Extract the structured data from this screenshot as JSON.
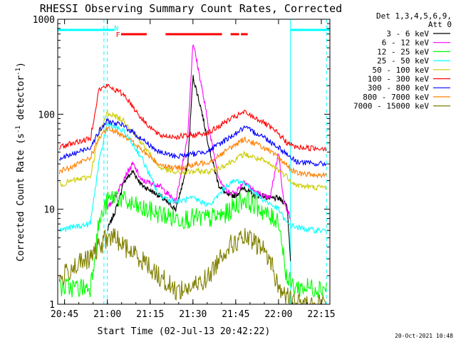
{
  "chart_data": {
    "type": "line",
    "title": "RHESSI Observing Summary Count Rates, Corrected",
    "xlabel": "Start Time (02-Jul-13 20:42:22)",
    "ylabel": "Corrected Count Rate (s⁻¹ detector⁻¹)",
    "ylabel_parts": {
      "prefix": "Corrected Count Rate (s",
      "sup1": "-1",
      "mid": " detector",
      "sup2": "-1",
      "suffix": ")"
    },
    "xlim": [
      20.71,
      22.3
    ],
    "ylim": [
      1,
      1000
    ],
    "yscale": "log",
    "x_ticks": [
      {
        "v": 20.75,
        "label": "20:45"
      },
      {
        "v": 21.0,
        "label": "21:00"
      },
      {
        "v": 21.25,
        "label": "21:15"
      },
      {
        "v": 21.5,
        "label": "21:30"
      },
      {
        "v": 21.75,
        "label": "21:45"
      },
      {
        "v": 22.0,
        "label": "22:00"
      },
      {
        "v": 22.25,
        "label": "22:15"
      }
    ],
    "y_ticks": [
      {
        "v": 1,
        "label": "1"
      },
      {
        "v": 10,
        "label": "10"
      },
      {
        "v": 100,
        "label": "100"
      },
      {
        "v": 1000,
        "label": "1000"
      }
    ],
    "legend_header": [
      "Det 1,3,4,5,6,9,",
      "Att 0"
    ],
    "legend_placement": "right",
    "annotation_N": "N",
    "annotation_F": "F",
    "night_segments": [
      [
        20.71,
        21.04
      ],
      [
        22.07,
        22.3
      ]
    ],
    "flare_segments": [
      [
        21.08,
        21.23
      ],
      [
        21.34,
        21.67
      ],
      [
        21.72,
        21.77
      ],
      [
        21.78,
        21.82
      ]
    ],
    "vlines": [
      20.98,
      21.0,
      22.07,
      22.28
    ],
    "footer_date": "20-Oct-2021 10:48",
    "series": [
      {
        "name": "3 - 6 keV",
        "color": "#000000",
        "x": [
          21.0,
          21.05,
          21.1,
          21.15,
          21.2,
          21.3,
          21.4,
          21.47,
          21.5,
          21.55,
          21.6,
          21.65,
          21.7,
          21.75,
          21.8,
          21.85,
          21.9,
          21.95,
          22.0,
          22.03,
          22.05,
          22.07
        ],
        "y": [
          6,
          10,
          20,
          25,
          18,
          14,
          10,
          30,
          250,
          110,
          40,
          18,
          14,
          14,
          17,
          14,
          14,
          13,
          13,
          12,
          11,
          3
        ]
      },
      {
        "name": "6 - 12 keV",
        "color": "#ff00ff",
        "x": [
          21.0,
          21.05,
          21.1,
          21.15,
          21.2,
          21.3,
          21.4,
          21.47,
          21.5,
          21.55,
          21.6,
          21.65,
          21.7,
          21.75,
          21.8,
          21.85,
          21.9,
          21.95,
          22.0,
          22.03,
          22.05,
          22.07
        ],
        "y": [
          10,
          14,
          22,
          30,
          20,
          18,
          12,
          60,
          580,
          200,
          60,
          22,
          15,
          15,
          20,
          16,
          14,
          13,
          40,
          12,
          10,
          8
        ]
      },
      {
        "name": "12 - 25 keV",
        "color": "#00ff00",
        "x": [
          20.72,
          20.8,
          20.9,
          20.95,
          21.0,
          21.05,
          21.1,
          21.2,
          21.3,
          21.4,
          21.5,
          21.6,
          21.7,
          21.75,
          21.8,
          21.9,
          21.95,
          22.0,
          22.05,
          22.1,
          22.2,
          22.28
        ],
        "y": [
          1.5,
          1.5,
          1.5,
          7,
          12,
          14,
          12,
          10,
          9,
          8,
          8,
          8,
          9,
          11,
          13,
          10,
          8,
          8,
          1.8,
          1.5,
          1.5,
          1.5
        ]
      },
      {
        "name": "25 - 50 keV",
        "color": "#00ffff",
        "x": [
          20.72,
          20.8,
          20.9,
          20.95,
          21.0,
          21.1,
          21.2,
          21.3,
          21.4,
          21.5,
          21.6,
          21.7,
          21.75,
          21.8,
          21.9,
          22.0,
          22.05,
          22.1,
          22.2,
          22.28
        ],
        "y": [
          6,
          6.5,
          7,
          30,
          80,
          65,
          35,
          14,
          12,
          13,
          11,
          18,
          20,
          19,
          13,
          10,
          7,
          6.5,
          6,
          6
        ]
      },
      {
        "name": "50 - 100 keV",
        "color": "#cccc00",
        "x": [
          20.72,
          20.8,
          20.9,
          20.95,
          21.0,
          21.1,
          21.2,
          21.3,
          21.4,
          21.5,
          21.6,
          21.7,
          21.8,
          21.9,
          22.0,
          22.05,
          22.1,
          22.2,
          22.28
        ],
        "y": [
          18,
          20,
          22,
          60,
          105,
          85,
          50,
          28,
          24,
          25,
          25,
          30,
          38,
          33,
          26,
          22,
          18,
          17,
          17
        ]
      },
      {
        "name": "100 - 300 keV",
        "color": "#ff0000",
        "x": [
          20.72,
          20.8,
          20.9,
          20.95,
          21.0,
          21.1,
          21.2,
          21.3,
          21.4,
          21.5,
          21.6,
          21.7,
          21.8,
          21.9,
          22.0,
          22.05,
          22.1,
          22.2,
          22.28
        ],
        "y": [
          45,
          50,
          55,
          180,
          200,
          160,
          90,
          60,
          58,
          60,
          65,
          85,
          105,
          85,
          62,
          50,
          45,
          44,
          44
        ]
      },
      {
        "name": "300 - 800 keV",
        "color": "#0000ff",
        "x": [
          20.72,
          20.8,
          20.9,
          20.95,
          21.0,
          21.1,
          21.2,
          21.3,
          21.4,
          21.5,
          21.6,
          21.7,
          21.8,
          21.9,
          22.0,
          22.05,
          22.1,
          22.2,
          22.28
        ],
        "y": [
          34,
          38,
          45,
          65,
          85,
          75,
          55,
          40,
          36,
          38,
          42,
          55,
          72,
          60,
          45,
          38,
          32,
          30,
          30
        ]
      },
      {
        "name": "800 - 7000 keV",
        "color": "#ff8000",
        "x": [
          20.72,
          20.8,
          20.9,
          20.95,
          21.0,
          21.1,
          21.2,
          21.3,
          21.4,
          21.5,
          21.6,
          21.7,
          21.8,
          21.9,
          22.0,
          22.05,
          22.1,
          22.2,
          22.28
        ],
        "y": [
          25,
          28,
          35,
          55,
          70,
          60,
          42,
          30,
          27,
          29,
          32,
          42,
          55,
          46,
          35,
          29,
          24,
          23,
          23
        ]
      },
      {
        "name": "7000 - 15000 keV",
        "color": "#808000",
        "x": [
          20.72,
          20.8,
          20.9,
          20.95,
          21.0,
          21.05,
          21.1,
          21.2,
          21.3,
          21.4,
          21.5,
          21.6,
          21.65,
          21.7,
          21.8,
          21.9,
          21.95,
          22.0,
          22.05,
          22.1,
          22.2,
          22.28
        ],
        "y": [
          1.8,
          2.5,
          3,
          4,
          5,
          5,
          4,
          3,
          2,
          1.4,
          1.5,
          2,
          3,
          4,
          5,
          4,
          3,
          1.5,
          1.2,
          1,
          1,
          1
        ]
      }
    ]
  }
}
